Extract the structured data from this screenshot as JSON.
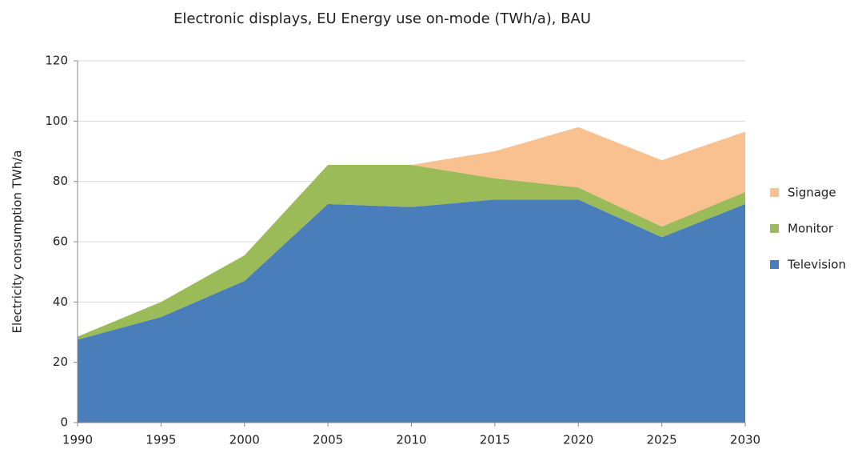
{
  "chart_data": {
    "type": "stacked-area",
    "title": "Electronic displays, EU Energy use on-mode (TWh/a), BAU",
    "y_label": "Electricity consumption TWh/a",
    "x": [
      1990,
      1995,
      2000,
      2005,
      2010,
      2015,
      2020,
      2025,
      2030
    ],
    "series": [
      {
        "name": "Television",
        "color": "#4a7ebb",
        "values": [
          27.5,
          35,
          47,
          72.5,
          71.5,
          74,
          74,
          61.5,
          72.5
        ]
      },
      {
        "name": "Monitor",
        "color": "#9bbb59",
        "values": [
          1,
          5,
          8.5,
          13,
          14,
          7,
          4,
          3.5,
          4
        ]
      },
      {
        "name": "Signage",
        "color": "#f9c090",
        "values": [
          0,
          0,
          0,
          0,
          0,
          9,
          20,
          22,
          20
        ]
      }
    ],
    "xlim": [
      1990,
      2030
    ],
    "xticks": [
      1990,
      1995,
      2000,
      2005,
      2010,
      2015,
      2020,
      2025,
      2030
    ],
    "ylim": [
      0,
      120
    ],
    "yticks": [
      0,
      20,
      40,
      60,
      80,
      100,
      120
    ],
    "grid": true,
    "legend": "right"
  }
}
